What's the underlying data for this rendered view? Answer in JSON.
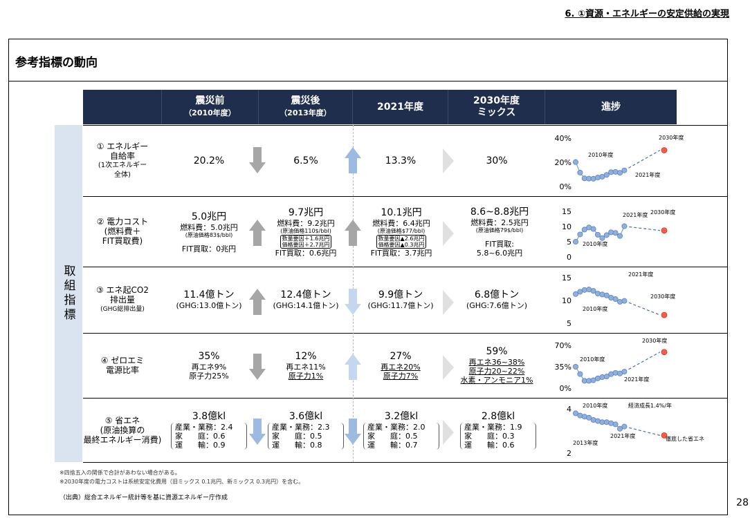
{
  "page_header": "6. ①資源・エネルギーの安定供給の実現",
  "section_title": "参考指標の動向",
  "side_label": "取組指標",
  "columns": [
    {
      "title": "震災前",
      "sub": "（2010年度）"
    },
    {
      "title": "震災後",
      "sub": "（2013年度）"
    },
    {
      "title": "2021年度",
      "sub": ""
    },
    {
      "title": "2030年度",
      "sub": "ミックス"
    },
    {
      "title": "進捗",
      "sub": ""
    }
  ],
  "rows": [
    {
      "label": [
        "① エネルギー",
        "自給率"
      ],
      "label_small": [
        "(1次エネルギー",
        "全体)"
      ],
      "v2010": "20.2%",
      "v2013": "6.5%",
      "v2021": "13.3%",
      "v2030": "30%"
    },
    {
      "label": [
        "② 電力コスト",
        "(燃料費＋",
        "FIT買取費)"
      ],
      "v2010": {
        "main": "5.0兆円",
        "fuel": "燃料費：5.0兆円",
        "note": "(原油価格83$/bbl)",
        "fit": "FIT買取：0兆円"
      },
      "v2013": {
        "main": "9.7兆円",
        "fuel": "燃料費：9.2兆円",
        "note": "(原油価格110$/bbl)",
        "box1": "数量要因＋1.6兆円",
        "box2": "価格要因＋2.7兆円",
        "fit": "FIT買取：0.6兆円"
      },
      "v2021": {
        "main": "10.1兆円",
        "fuel": "燃料費：6.4兆円",
        "note": "(原油価格$77/bbl)",
        "box1": "数量要因▲2.6兆円",
        "box2": "価格要因▲0.3兆円",
        "fit": "FIT買取：3.7兆円"
      },
      "v2030": {
        "main": "8.6~8.8兆円",
        "fuel": "燃料費：2.5兆円",
        "note": "(原油価格79$/bbl)",
        "fit_label": "FIT買取:",
        "fit": "5.8~6.0兆円"
      }
    },
    {
      "label": [
        "③ エネ起CO2",
        "排出量"
      ],
      "label_small": [
        "(GHG総排出量)"
      ],
      "v2010": {
        "main": "11.4億トン",
        "sub": "(GHG:13.0億トン)"
      },
      "v2013": {
        "main": "12.4億トン",
        "sub": "(GHG:14.1億トン)"
      },
      "v2021": {
        "main": "9.9億トン",
        "sub": "(GHG:11.7億トン)"
      },
      "v2030": {
        "main": "6.8億トン",
        "sub": "(GHG:7.6億トン)"
      }
    },
    {
      "label": [
        "④ ゼロエミ",
        "電源比率"
      ],
      "v2010": {
        "main": "35%",
        "l1": "再エネ9%",
        "l2": "原子力25%"
      },
      "v2013": {
        "main": "12%",
        "l1": "再エネ11%",
        "l2": "原子力1%"
      },
      "v2021": {
        "main": "27%",
        "l1": "再エネ20%",
        "l2": "原子力7%"
      },
      "v2030": {
        "main": "59%",
        "l1": "再エネ36~38%",
        "l2": "原子力20~22%",
        "l3": "水素・アンモニア1%"
      }
    },
    {
      "label": [
        "⑤ 省エネ",
        "(原油換算の",
        "最終エネルギー消費)"
      ],
      "v2010": {
        "main": "3.8億kl",
        "industry": "産業・業務：2.4",
        "home": "家　　庭：0.6",
        "transport": "運　　輸：0.9"
      },
      "v2013": {
        "main": "3.6億kl",
        "industry": "産業・業務：2.3",
        "home": "家　　庭：0.5",
        "transport": "運　　輸：0.8"
      },
      "v2021": {
        "main": "3.2億kl",
        "industry": "産業・業務：2.0",
        "home": "家　　庭：0.5",
        "transport": "運　　輸：0.7"
      },
      "v2030": {
        "main": "2.8億kl",
        "industry": "産業・業務：1.9",
        "home": "家　　庭：0.3",
        "transport": "運　　輸：0.6"
      }
    }
  ],
  "notes": [
    "※四捨五入の関係で合計があわない場合がある。",
    "※2030年度の電力コストは系統安定化費用（旧ミックス 0.1兆円、新ミックス 0.3兆円）を含む。"
  ],
  "source": "（出典）総合エネルギー統計等を基に資源エネルギー庁作成",
  "page_number": "28",
  "colors": {
    "header_bg": "#1f2e4d",
    "side_bg": "#dae3f0",
    "point": "#8fb0dc",
    "target": "#ff5b4a",
    "arrow_down": "#a6a6a6",
    "arrow_up": "#9dbbe0"
  },
  "chart_data": [
    {
      "type": "line",
      "ylabel_ticks": [
        "40%",
        "20%",
        "0%"
      ],
      "ylim": [
        0,
        40
      ],
      "x": [
        2010,
        2011,
        2012,
        2013,
        2014,
        2015,
        2016,
        2017,
        2018,
        2019,
        2020,
        2021
      ],
      "values": [
        20.2,
        11.5,
        6.7,
        6.5,
        6.4,
        7.4,
        8.1,
        9.6,
        11.8,
        12.1,
        11.3,
        13.3
      ],
      "target": {
        "x": 2030,
        "value": 30
      },
      "annotations": [
        "2010年度",
        "2021年度",
        "2030年度"
      ]
    },
    {
      "type": "line",
      "ylabel_ticks": [
        "15",
        "10",
        "5",
        "0"
      ],
      "ylim": [
        0,
        15
      ],
      "x": [
        2010,
        2011,
        2012,
        2013,
        2014,
        2015,
        2016,
        2017,
        2018,
        2019,
        2020,
        2021
      ],
      "values": [
        5.0,
        7.4,
        9.0,
        9.7,
        9.2,
        7.3,
        6.2,
        7.2,
        8.1,
        7.9,
        6.9,
        10.1
      ],
      "target": {
        "x": 2030,
        "value": 8.7
      },
      "annotations": [
        "2010年度",
        "2021年度",
        "2030年度"
      ]
    },
    {
      "type": "line",
      "ylabel_ticks": [
        "15",
        "10",
        "5"
      ],
      "ylim": [
        5,
        15
      ],
      "x": [
        2010,
        2011,
        2012,
        2013,
        2014,
        2015,
        2016,
        2017,
        2018,
        2019,
        2020,
        2021
      ],
      "values": [
        11.4,
        11.9,
        12.3,
        12.4,
        12.1,
        11.5,
        11.3,
        11.1,
        10.6,
        10.3,
        9.7,
        9.9
      ],
      "target": {
        "x": 2030,
        "value": 6.8
      },
      "annotations": [
        "2010年度",
        "2021年度",
        "2030年度"
      ]
    },
    {
      "type": "line",
      "ylabel_ticks": [
        "70%",
        "35%",
        "0%"
      ],
      "ylim": [
        0,
        70
      ],
      "x": [
        2010,
        2011,
        2012,
        2013,
        2014,
        2015,
        2016,
        2017,
        2018,
        2019,
        2020,
        2021
      ],
      "values": [
        35,
        23,
        12,
        12,
        13,
        16,
        18,
        19,
        23,
        25,
        24,
        27
      ],
      "target": {
        "x": 2030,
        "value": 59
      },
      "annotations": [
        "2010年度",
        "2021年度",
        "2030年度"
      ]
    },
    {
      "type": "line",
      "ylabel_ticks": [
        "4",
        "2"
      ],
      "ylim": [
        2,
        4
      ],
      "x": [
        2010,
        2011,
        2012,
        2013,
        2014,
        2015,
        2016,
        2017,
        2018,
        2019,
        2020,
        2021
      ],
      "values": [
        3.8,
        3.7,
        3.65,
        3.6,
        3.5,
        3.45,
        3.4,
        3.4,
        3.35,
        3.3,
        3.1,
        3.2
      ],
      "target": {
        "x": 2030,
        "value": 2.8
      },
      "annotations": [
        "2010年度",
        "2013年度",
        "2021年度",
        "経済成長1.4%/年",
        "徹底した省エネ"
      ]
    }
  ]
}
